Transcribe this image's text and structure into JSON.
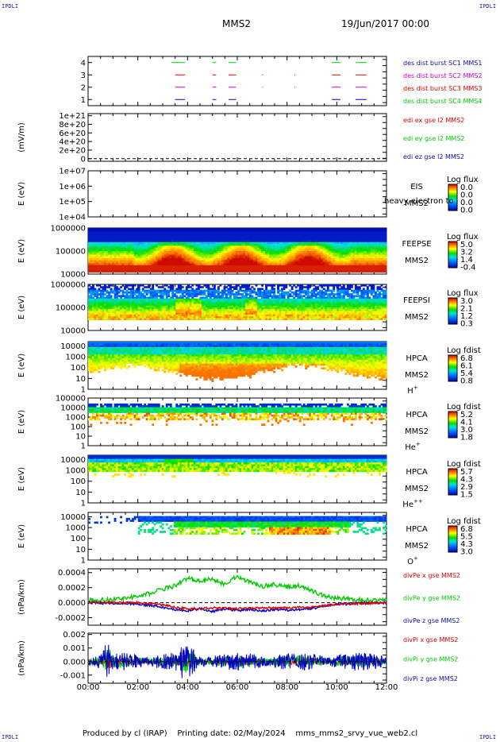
{
  "header": {
    "mission": "MMS2",
    "date": "19/Jun/2017 00:00",
    "corner_label": "IPDLI"
  },
  "footer": {
    "produced_by": "Produced by cl (IRAP)",
    "printing_date": "Printing date: 02/May/2024",
    "script": "mms_mms2_srvy_vue_web2.cl"
  },
  "time_axis": {
    "tick_labels": [
      "00:00",
      "02:00",
      "04:00",
      "06:00",
      "08:00",
      "10:00",
      "12:00"
    ],
    "hours": [
      0,
      2,
      4,
      6,
      8,
      10,
      12
    ],
    "range_hours": [
      0,
      12
    ]
  },
  "colors": {
    "red": "#dd0000",
    "green": "#00cc00",
    "blue": "#0000cc",
    "magenta": "#cc00cc",
    "legend_blue": "#1010a0"
  },
  "chart_data": [
    {
      "id": "burst",
      "type": "scatter",
      "yticks": [
        "4",
        "3",
        "2",
        "1"
      ],
      "ytick_values": [
        4,
        3,
        2,
        1
      ],
      "ylim": [
        0.5,
        4.5
      ],
      "legend": [
        {
          "text": "des dist burst SC1 MMS1",
          "color": "#1010a0"
        },
        {
          "text": "des dist burst SC2 MMS2",
          "color": "#cc00cc"
        },
        {
          "text": "des dist burst SC3 MMS3",
          "color": "#dd0000"
        },
        {
          "text": "des dist burst SC4 MMS4",
          "color": "#00cc00"
        }
      ],
      "series": [
        {
          "level": 4,
          "color": "#00cc00",
          "segments": [
            [
              3.35,
              3.9
            ],
            [
              5.0,
              5.15
            ],
            [
              5.65,
              5.95
            ],
            [
              9.8,
              10.15
            ],
            [
              10.75,
              11.2
            ]
          ]
        },
        {
          "level": 3,
          "color": "#dd0000",
          "segments": [
            [
              3.5,
              3.9
            ],
            [
              5.0,
              5.15
            ],
            [
              5.65,
              5.95
            ],
            [
              7.0,
              7.03
            ],
            [
              8.3,
              8.33
            ],
            [
              9.8,
              10.15
            ],
            [
              10.75,
              11.2
            ]
          ]
        },
        {
          "level": 2,
          "color": "#cc00cc",
          "segments": [
            [
              3.5,
              3.9
            ],
            [
              5.0,
              5.15
            ],
            [
              5.65,
              5.95
            ],
            [
              7.0,
              7.03
            ],
            [
              8.3,
              8.33
            ],
            [
              9.8,
              10.15
            ],
            [
              10.75,
              11.2
            ]
          ]
        },
        {
          "level": 1,
          "color": "#0000cc",
          "segments": [
            [
              3.5,
              3.9
            ],
            [
              5.0,
              5.15
            ],
            [
              5.65,
              5.95
            ],
            [
              9.8,
              10.15
            ],
            [
              10.75,
              11.2
            ]
          ]
        }
      ]
    },
    {
      "id": "edi",
      "type": "line",
      "ylabel": "(mV/m)",
      "yticks": [
        "1e+21",
        "8e+20",
        "6e+20",
        "4e+20",
        "2e+20",
        "0"
      ],
      "ytick_values": [
        1e+21,
        8e+20,
        6e+20,
        4e+20,
        2e+20,
        0
      ],
      "ylim": [
        -6e+19,
        1.05e+21
      ],
      "legend": [
        {
          "text": "edi ex gse l2 MMS2",
          "color": "#dd0000"
        },
        {
          "text": "edi ey gse l2 MMS2",
          "color": "#00cc00"
        },
        {
          "text": "edi ez gse l2 MMS2",
          "color": "#1010a0"
        }
      ]
    },
    {
      "id": "eis",
      "type": "heatmap",
      "ylabel": "E (eV)",
      "yticks": [
        "1e+07",
        "1e+06",
        "1e+05",
        "1e+04"
      ],
      "ytick_values": [
        7,
        6,
        5,
        4
      ],
      "ylim": [
        4,
        7
      ],
      "instrument": "EIS",
      "spacecraft": "MMS2",
      "overlay_text": "heavy electron to",
      "colorbar": {
        "title": "Log flux",
        "labels": [
          "0.0",
          "0.0",
          "0.0",
          "0.0"
        ]
      }
    },
    {
      "id": "feepse",
      "type": "heatmap",
      "ylabel": "E (eV)",
      "yticks": [
        "1000000",
        "100000",
        "10000"
      ],
      "ytick_values": [
        6,
        5,
        4
      ],
      "ylim": [
        4,
        6
      ],
      "instrument": "FEEPSE",
      "spacecraft": "MMS2",
      "colorbar": {
        "title": "Log flux",
        "labels": [
          "5.0",
          "3.2",
          "1.4",
          "-0.4"
        ]
      }
    },
    {
      "id": "feepsi",
      "type": "heatmap",
      "ylabel": "E (eV)",
      "yticks": [
        "1000000",
        "100000",
        "10000"
      ],
      "ytick_values": [
        6,
        5,
        4
      ],
      "ylim": [
        4,
        6
      ],
      "instrument": "FEEPSI",
      "spacecraft": "MMS2",
      "colorbar": {
        "title": "Log flux",
        "labels": [
          "3.0",
          "2.1",
          "1.2",
          "0.3"
        ]
      }
    },
    {
      "id": "hpca_h",
      "type": "heatmap",
      "ylabel": "E (eV)",
      "yticks": [
        "10000",
        "1000",
        "100",
        "10",
        "1"
      ],
      "ytick_values": [
        4,
        3,
        2,
        1,
        0
      ],
      "ylim": [
        0,
        4.4
      ],
      "instrument": "HPCA",
      "spacecraft": "MMS2",
      "species": "H",
      "species_sup": "+",
      "colorbar": {
        "title": "Log fdist",
        "labels": [
          "6.8",
          "6.1",
          "5.4",
          "0.8"
        ]
      }
    },
    {
      "id": "hpca_he",
      "type": "heatmap",
      "ylabel": "E (eV)",
      "yticks": [
        "100000",
        "10000",
        "1000",
        "100",
        "10",
        "1"
      ],
      "ytick_values": [
        5,
        4,
        3,
        2,
        1,
        0
      ],
      "ylim": [
        0,
        5
      ],
      "instrument": "HPCA",
      "spacecraft": "MMS2",
      "species": "He",
      "species_sup": "+",
      "colorbar": {
        "title": "Log fdist",
        "labels": [
          "5.2",
          "4.1",
          "3.0",
          "1.8"
        ]
      }
    },
    {
      "id": "hpca_hepp",
      "type": "heatmap",
      "ylabel": "E (eV)",
      "yticks": [
        "10000",
        "1000",
        "100",
        "10",
        "1"
      ],
      "ytick_values": [
        4,
        3,
        2,
        1,
        0
      ],
      "ylim": [
        0,
        4.4
      ],
      "instrument": "HPCA",
      "spacecraft": "MMS2",
      "species": "He",
      "species_sup": "++",
      "colorbar": {
        "title": "Log fdist",
        "labels": [
          "5.7",
          "4.3",
          "2.9",
          "1.5"
        ]
      }
    },
    {
      "id": "hpca_o",
      "type": "heatmap",
      "ylabel": "E (eV)",
      "yticks": [
        "10000",
        "1000",
        "100",
        "10",
        "1"
      ],
      "ytick_values": [
        4,
        3,
        2,
        1,
        0
      ],
      "ylim": [
        0,
        4.4
      ],
      "instrument": "HPCA",
      "spacecraft": "MMS2",
      "species": "O",
      "species_sup": "+",
      "colorbar": {
        "title": "Log fdist",
        "labels": [
          "6.8",
          "5.5",
          "4.3",
          "3.0"
        ]
      }
    },
    {
      "id": "divpe",
      "type": "line",
      "ylabel": "(nPa/km)",
      "yticks": [
        "0.0004",
        "0.0002",
        "0.0000",
        "-0.0002"
      ],
      "ytick_values": [
        0.0004,
        0.0002,
        0,
        -0.0002
      ],
      "ylim": [
        -0.0003,
        0.00045
      ],
      "legend": [
        {
          "text": "divPe x gse MMS2",
          "color": "#dd0000"
        },
        {
          "text": "divPe y gse MMS2",
          "color": "#00cc00"
        },
        {
          "text": "divPe z gse MMS2",
          "color": "#1010a0"
        }
      ],
      "series": [
        {
          "name": "divPe y gse MMS2",
          "color": "#00cc00",
          "x": [
            0,
            1,
            1.5,
            2,
            2.5,
            3,
            3.5,
            4,
            4.5,
            5,
            5.5,
            6,
            6.5,
            7,
            7.5,
            8,
            8.5,
            9,
            9.5,
            10,
            10.5,
            11,
            11.5,
            12
          ],
          "y": [
            3e-05,
            4e-05,
            5e-05,
            0.0001,
            0.00012,
            0.00018,
            0.00022,
            0.00033,
            0.00028,
            0.00032,
            0.00024,
            0.00035,
            0.00027,
            0.00022,
            0.00024,
            0.00021,
            0.00023,
            0.00015,
            9e-05,
            6e-05,
            5e-05,
            4e-05,
            3e-05,
            3e-05
          ]
        },
        {
          "name": "divPe z gse MMS2",
          "color": "#0000cc",
          "x": [
            0,
            1,
            2,
            2.5,
            3,
            3.5,
            4,
            4.5,
            5,
            5.5,
            6,
            6.5,
            7,
            7.5,
            8,
            8.5,
            9,
            9.5,
            10,
            11,
            12
          ],
          "y": [
            0,
            -1e-05,
            -2e-05,
            -4e-05,
            -6e-05,
            -9e-05,
            -0.00011,
            -8e-05,
            -0.00012,
            -8e-05,
            -0.00011,
            -9e-05,
            -0.00011,
            -9e-05,
            -0.0001,
            -9e-05,
            -8e-05,
            -4e-05,
            -2e-05,
            -1e-05,
            0
          ]
        },
        {
          "name": "divPe x gse MMS2",
          "color": "#dd0000",
          "x": [
            0,
            2,
            3,
            3.5,
            4,
            5,
            6,
            7,
            8,
            9,
            10,
            12
          ],
          "y": [
            0,
            0,
            -3e-05,
            -6e-05,
            -8e-05,
            -7e-05,
            -8e-05,
            -7e-05,
            -7e-05,
            -6e-05,
            -2e-05,
            0
          ]
        }
      ]
    },
    {
      "id": "divpi",
      "type": "line",
      "ylabel": "(nPa/km)",
      "yticks": [
        "0.002",
        "0.001",
        "0.000",
        "-0.001"
      ],
      "ytick_values": [
        0.002,
        0.001,
        0,
        -0.001
      ],
      "ylim": [
        -0.0016,
        0.0021
      ],
      "legend": [
        {
          "text": "divPi x gse MMS2",
          "color": "#dd0000"
        },
        {
          "text": "divPi y gse MMS2",
          "color": "#00cc00"
        },
        {
          "text": "divPi z gse MMS2",
          "color": "#1010a0"
        }
      ],
      "noise": {
        "blue_amplitude": 0.0009,
        "green_amplitude": 0.0006,
        "red_amplitude": 0.0004
      }
    }
  ]
}
